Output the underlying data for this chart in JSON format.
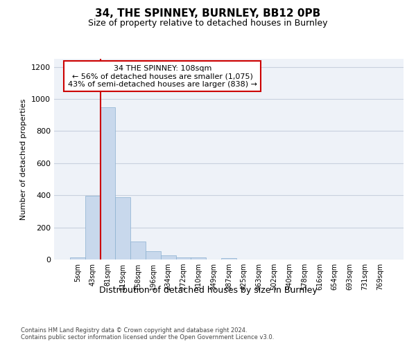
{
  "title1": "34, THE SPINNEY, BURNLEY, BB12 0PB",
  "title2": "Size of property relative to detached houses in Burnley",
  "xlabel": "Distribution of detached houses by size in Burnley",
  "ylabel": "Number of detached properties",
  "footnote1": "Contains HM Land Registry data © Crown copyright and database right 2024.",
  "footnote2": "Contains public sector information licensed under the Open Government Licence v3.0.",
  "bin_labels": [
    "5sqm",
    "43sqm",
    "81sqm",
    "119sqm",
    "158sqm",
    "196sqm",
    "234sqm",
    "272sqm",
    "310sqm",
    "349sqm",
    "387sqm",
    "425sqm",
    "463sqm",
    "502sqm",
    "540sqm",
    "578sqm",
    "616sqm",
    "654sqm",
    "693sqm",
    "731sqm",
    "769sqm"
  ],
  "bar_values": [
    12,
    395,
    950,
    390,
    110,
    52,
    25,
    14,
    11,
    0,
    10,
    0,
    0,
    0,
    0,
    0,
    0,
    0,
    0,
    0,
    0
  ],
  "bar_color": "#c8d8ec",
  "bar_edge_color": "#8ab0d0",
  "grid_color": "#c8d0de",
  "background_color": "#eef2f8",
  "red_line_color": "#cc0000",
  "red_line_x": 1.5,
  "annotation_text": "34 THE SPINNEY: 108sqm\n← 56% of detached houses are smaller (1,075)\n43% of semi-detached houses are larger (838) →",
  "annotation_box_color": "#cc0000",
  "ylim": [
    0,
    1250
  ],
  "yticks": [
    0,
    200,
    400,
    600,
    800,
    1000,
    1200
  ]
}
